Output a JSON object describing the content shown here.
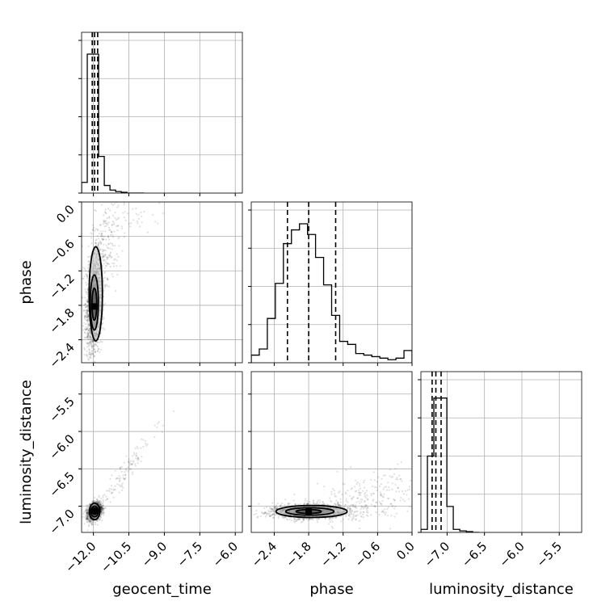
{
  "chart_data": {
    "type": "corner",
    "parameters": [
      "geocent_time",
      "phase",
      "luminosity_distance"
    ],
    "axis_labels": {
      "x": [
        "geocent_time",
        "phase",
        "luminosity_distance"
      ],
      "y": [
        "",
        "phase",
        "luminosity_distance"
      ]
    },
    "ranges": {
      "geocent_time": [
        -12.5,
        -5.7
      ],
      "phase": [
        -2.8,
        0.0
      ],
      "luminosity_distance": [
        -7.35,
        -5.2
      ]
    },
    "ticks": {
      "geocent_time": {
        "values": [
          -12.0,
          -10.5,
          -9.0,
          -7.5,
          -6.0
        ],
        "labels": [
          "−12.0",
          "−10.5",
          "−9.0",
          "−7.5",
          "−6.0"
        ]
      },
      "phase": {
        "values": [
          -2.4,
          -1.8,
          -1.2,
          -0.6,
          0.0
        ],
        "labels": [
          "−2.4",
          "−1.8",
          "−1.2",
          "−0.6",
          "0.0"
        ]
      },
      "luminosity_distance": {
        "values": [
          -7.0,
          -6.5,
          -6.0,
          -5.5
        ],
        "labels": [
          "−7.0",
          "−6.5",
          "−6.0",
          "−5.5"
        ]
      }
    },
    "grid": true,
    "histograms": {
      "geocent_time": {
        "bin_edges": [
          -12.5,
          -12.26,
          -12.02,
          -11.78,
          -11.54,
          -11.3,
          -11.06,
          -10.82,
          -10.58,
          -10.34,
          -10.1,
          -9.86
        ],
        "counts": [
          0.07,
          0.91,
          0.91,
          0.24,
          0.05,
          0.02,
          0.01,
          0.005,
          0.0,
          0.0,
          0.0
        ],
        "quantiles": [
          -12.05,
          -11.95,
          -11.82
        ]
      },
      "phase": {
        "bin_edges": [
          -2.8,
          -2.66,
          -2.52,
          -2.38,
          -2.24,
          -2.1,
          -1.96,
          -1.82,
          -1.68,
          -1.54,
          -1.4,
          -1.26,
          -1.12,
          -0.98,
          -0.84,
          -0.7,
          -0.56,
          -0.42,
          -0.28,
          -0.14,
          0.0
        ],
        "counts": [
          0.05,
          0.09,
          0.29,
          0.52,
          0.78,
          0.87,
          0.91,
          0.84,
          0.69,
          0.51,
          0.31,
          0.14,
          0.12,
          0.06,
          0.05,
          0.04,
          0.03,
          0.02,
          0.03,
          0.08
        ],
        "quantiles": [
          -2.17,
          -1.8,
          -1.33
        ]
      },
      "luminosity_distance": {
        "bin_edges": [
          -7.35,
          -7.263,
          -7.177,
          -7.09,
          -7.003,
          -6.917,
          -6.83,
          -6.743,
          -6.657,
          -6.57
        ],
        "counts": [
          0.02,
          0.5,
          0.88,
          0.88,
          0.17,
          0.02,
          0.01,
          0.005,
          0.0
        ],
        "quantiles": [
          -7.2,
          -7.15,
          -7.08
        ]
      }
    },
    "scatter_pairs": [
      {
        "x": "geocent_time",
        "y": "phase",
        "blobs": [
          {
            "mx": -11.97,
            "my": -1.8,
            "sx": 0.18,
            "sy": 0.42,
            "n": 1500,
            "rho": 0.2
          },
          {
            "mx": -11.55,
            "my": -0.8,
            "sx": 0.35,
            "sy": 0.35,
            "n": 250,
            "rho": 0.3
          },
          {
            "mx": -10.6,
            "my": -0.25,
            "sx": 0.7,
            "sy": 0.15,
            "n": 40,
            "rho": 0.0
          }
        ],
        "contours": [
          {
            "cx": -11.96,
            "cy": -1.78,
            "rx": 0.1,
            "ry": 0.28
          },
          {
            "cx": -11.96,
            "cy": -1.75,
            "rx": 0.17,
            "ry": 0.48
          },
          {
            "cx": -11.9,
            "cy": -1.6,
            "rx": 0.28,
            "ry": 0.82
          }
        ],
        "core": {
          "x": -11.96,
          "y": -1.82
        }
      },
      {
        "x": "geocent_time",
        "y": "luminosity_distance",
        "blobs": [
          {
            "mx": -11.95,
            "my": -7.07,
            "sx": 0.15,
            "sy": 0.06,
            "n": 1500,
            "rho": 0.3
          },
          {
            "mx": -10.8,
            "my": -6.6,
            "sx": 0.8,
            "sy": 0.35,
            "n": 130,
            "rho": 0.97
          }
        ],
        "contours": [
          {
            "cx": -11.95,
            "cy": -7.07,
            "rx": 0.1,
            "ry": 0.04
          },
          {
            "cx": -11.95,
            "cy": -7.07,
            "rx": 0.16,
            "ry": 0.07
          },
          {
            "cx": -11.95,
            "cy": -7.07,
            "rx": 0.22,
            "ry": 0.11
          }
        ],
        "core": {
          "x": -11.96,
          "y": -7.06
        }
      },
      {
        "x": "phase",
        "y": "luminosity_distance",
        "blobs": [
          {
            "mx": -1.8,
            "my": -7.07,
            "sx": 0.35,
            "sy": 0.05,
            "n": 1500,
            "rho": 0.0
          },
          {
            "mx": -0.8,
            "my": -6.9,
            "sx": 0.45,
            "sy": 0.18,
            "n": 280,
            "rho": 0.35
          }
        ],
        "contours": [
          {
            "cx": -1.8,
            "cy": -7.07,
            "rx": 0.22,
            "ry": 0.025
          },
          {
            "cx": -1.78,
            "cy": -7.07,
            "rx": 0.42,
            "ry": 0.05
          },
          {
            "cx": -1.75,
            "cy": -7.07,
            "rx": 0.62,
            "ry": 0.08
          }
        ],
        "core": {
          "x": -1.8,
          "y": -7.07
        }
      }
    ]
  }
}
